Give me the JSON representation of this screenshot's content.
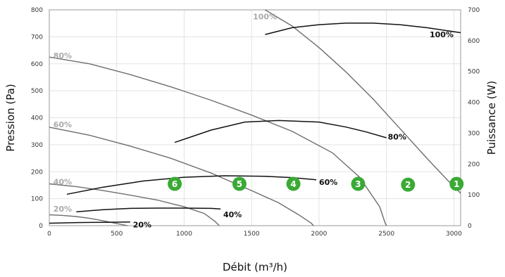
{
  "chart_data": {
    "type": "line",
    "xlabel": "Débit (m³/h)",
    "ylabel": "Pression (Pa)",
    "y2label": "Puissance (W)",
    "xlim": [
      0,
      3050
    ],
    "ylim": [
      0,
      800
    ],
    "y2lim": [
      0,
      700
    ],
    "xticks": [
      0,
      500,
      1000,
      1500,
      2000,
      2500,
      3000
    ],
    "yticks": [
      0,
      100,
      200,
      300,
      400,
      500,
      600,
      700,
      800
    ],
    "y2ticks": [
      0,
      100,
      200,
      300,
      400,
      500,
      600,
      700
    ],
    "grid": true,
    "pressure_series": [
      {
        "name": "100%",
        "label_at": [
          1510,
          775
        ],
        "x": [
          1600,
          1800,
          2000,
          2200,
          2400,
          2600,
          2800,
          2950,
          3050
        ],
        "y": [
          800,
          740,
          660,
          570,
          470,
          360,
          250,
          170,
          120
        ]
      },
      {
        "name": "80%",
        "label_at": [
          30,
          630
        ],
        "x": [
          0,
          300,
          600,
          900,
          1200,
          1500,
          1800,
          2100,
          2300,
          2450,
          2490,
          2500
        ],
        "y": [
          625,
          600,
          560,
          515,
          465,
          410,
          350,
          270,
          180,
          70,
          10,
          0
        ]
      },
      {
        "name": "60%",
        "label_at": [
          30,
          375
        ],
        "x": [
          0,
          300,
          600,
          900,
          1200,
          1500,
          1700,
          1850,
          1940,
          1960
        ],
        "y": [
          365,
          335,
          295,
          250,
          195,
          130,
          85,
          40,
          10,
          0
        ]
      },
      {
        "name": "40%",
        "label_at": [
          30,
          163
        ],
        "x": [
          0,
          200,
          400,
          600,
          800,
          1000,
          1150,
          1230,
          1260
        ],
        "y": [
          155,
          145,
          130,
          113,
          95,
          70,
          45,
          15,
          0
        ]
      },
      {
        "name": "20%",
        "label_at": [
          30,
          63
        ],
        "x": [
          0,
          100,
          200,
          300,
          400,
          500,
          580
        ],
        "y": [
          40,
          38,
          34,
          27,
          18,
          8,
          0
        ]
      }
    ],
    "power_series": [
      {
        "name": "100%",
        "label_at": [
          2820,
          620
        ],
        "x": [
          1600,
          1800,
          2000,
          2200,
          2400,
          2600,
          2800,
          3050
        ],
        "y": [
          620,
          642,
          652,
          657,
          657,
          652,
          642,
          626
        ]
      },
      {
        "name": "80%",
        "label_at": [
          2510,
          288
        ],
        "x": [
          930,
          1200,
          1450,
          1700,
          2000,
          2200,
          2350,
          2500
        ],
        "y": [
          270,
          310,
          336,
          341,
          336,
          320,
          304,
          285
        ]
      },
      {
        "name": "60%",
        "label_at": [
          2000,
          141
        ],
        "x": [
          130,
          400,
          700,
          1000,
          1300,
          1600,
          1800,
          1980
        ],
        "y": [
          102,
          125,
          145,
          157,
          162,
          160,
          156,
          149
        ]
      },
      {
        "name": "40%",
        "label_at": [
          1290,
          37
        ],
        "x": [
          200,
          400,
          600,
          800,
          1000,
          1200,
          1270
        ],
        "y": [
          45,
          52,
          56,
          57,
          57,
          56,
          54
        ]
      },
      {
        "name": "20%",
        "label_at": [
          620,
          3
        ],
        "x": [
          0,
          200,
          400,
          600
        ],
        "y": [
          8,
          10,
          11,
          12
        ]
      }
    ],
    "badges": [
      {
        "label": "6",
        "x": 930,
        "y": 155
      },
      {
        "label": "5",
        "x": 1410,
        "y": 155
      },
      {
        "label": "4",
        "x": 1810,
        "y": 155
      },
      {
        "label": "3",
        "x": 2290,
        "y": 155
      },
      {
        "label": "2",
        "x": 2660,
        "y": 152
      },
      {
        "label": "1",
        "x": 3020,
        "y": 155
      }
    ],
    "colors": {
      "pressure_curve": "#6e6e6e",
      "power_curve": "#111111",
      "pressure_label": "#aaaaaa",
      "badge": "#3aaa35"
    }
  }
}
